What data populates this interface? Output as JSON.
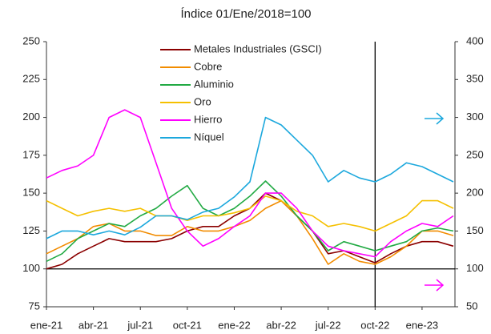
{
  "chart_data": {
    "type": "line",
    "title": "Índice 01/Ene/2018=100",
    "categories": [
      "ene-21",
      null,
      null,
      "abr-21",
      null,
      null,
      "jul-21",
      null,
      null,
      "oct-21",
      null,
      null,
      "ene-22",
      null,
      null,
      "abr-22",
      null,
      null,
      "jul-22",
      null,
      null,
      "oct-22",
      null,
      null,
      "ene-23",
      null,
      null
    ],
    "series": [
      {
        "name": "Metales Industriales (GSCI)",
        "color": "#8b0000",
        "values": [
          100,
          103,
          110,
          115,
          120,
          118,
          118,
          118,
          120,
          125,
          128,
          128,
          135,
          140,
          150,
          145,
          135,
          125,
          110,
          112,
          108,
          104,
          110,
          115,
          118,
          118,
          115
        ]
      },
      {
        "name": "Cobre",
        "color": "#f28c00",
        "values": [
          110,
          115,
          120,
          128,
          130,
          125,
          125,
          122,
          122,
          128,
          125,
          125,
          128,
          132,
          140,
          145,
          135,
          120,
          103,
          110,
          105,
          103,
          108,
          115,
          125,
          125,
          122
        ]
      },
      {
        "name": "Aluminio",
        "color": "#22aa44",
        "values": [
          105,
          110,
          120,
          125,
          130,
          128,
          135,
          140,
          148,
          155,
          140,
          135,
          140,
          148,
          158,
          148,
          135,
          125,
          112,
          118,
          115,
          112,
          115,
          118,
          125,
          127,
          125
        ]
      },
      {
        "name": "Oro",
        "color": "#f5c000",
        "values": [
          145,
          140,
          135,
          138,
          140,
          138,
          140,
          135,
          135,
          132,
          135,
          135,
          137,
          140,
          148,
          145,
          138,
          135,
          128,
          130,
          128,
          125,
          130,
          135,
          145,
          145,
          140
        ]
      },
      {
        "name": "Hierro",
        "color": "#ff00ff",
        "values": [
          160,
          165,
          168,
          175,
          200,
          205,
          200,
          170,
          140,
          125,
          115,
          120,
          128,
          135,
          150,
          150,
          140,
          125,
          115,
          112,
          110,
          108,
          118,
          125,
          130,
          128,
          135
        ]
      },
      {
        "name": "Níquel",
        "color": "#1ca8dd",
        "axis": "y2",
        "values": [
          140,
          150,
          150,
          145,
          150,
          145,
          155,
          170,
          170,
          165,
          175,
          180,
          195,
          215,
          300,
          290,
          270,
          250,
          215,
          230,
          220,
          215,
          225,
          240,
          235,
          225,
          215
        ]
      }
    ],
    "ylim": [
      75,
      250
    ],
    "yticks": [
      75,
      100,
      125,
      150,
      175,
      200,
      225,
      250
    ],
    "y2lim": [
      50,
      400
    ],
    "y2ticks": [
      50,
      100,
      150,
      200,
      250,
      300,
      350,
      400
    ],
    "hline": 100,
    "vline": "oct-22",
    "grid": false,
    "legend": "top"
  }
}
